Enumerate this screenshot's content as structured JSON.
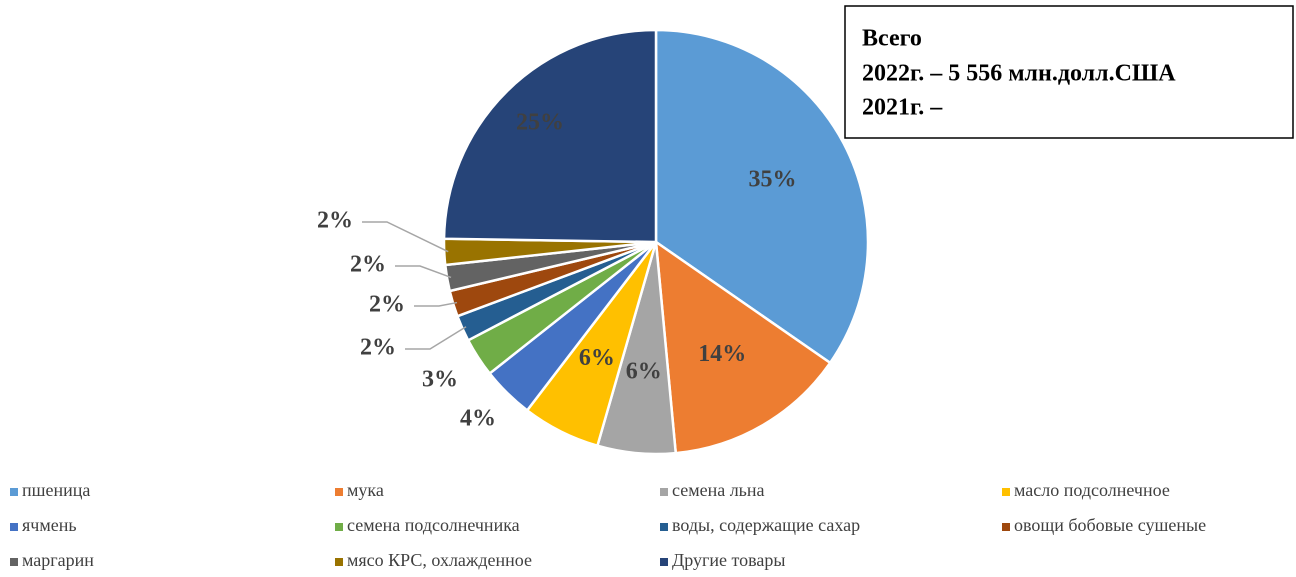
{
  "chart_data": {
    "type": "pie",
    "categories": [
      "пшеница",
      "мука",
      "семена льна",
      "масло подсолнечное",
      "ячмень",
      "семена подсолнечника",
      "воды, содержащие сахар",
      "овощи бобовые сушеные",
      "маргарин",
      "мясо КРС, охлажденное",
      "Другие товары"
    ],
    "values": [
      35,
      14,
      6,
      6,
      4,
      3,
      2,
      2,
      2,
      2,
      25
    ],
    "value_labels": [
      "35%",
      "14%",
      "6%",
      "6%",
      "4%",
      "3%",
      "2%",
      "2%",
      "2%",
      "2%",
      "25%"
    ],
    "colors": [
      "#5b9bd5",
      "#ed7d31",
      "#a5a5a5",
      "#ffc000",
      "#4472c4",
      "#70ad47",
      "#255e91",
      "#9e480e",
      "#636363",
      "#997300",
      "#264478"
    ],
    "annotation": [
      "Всего",
      "2022г. – 5 556 млн.долл.США",
      "2021г. –"
    ]
  }
}
